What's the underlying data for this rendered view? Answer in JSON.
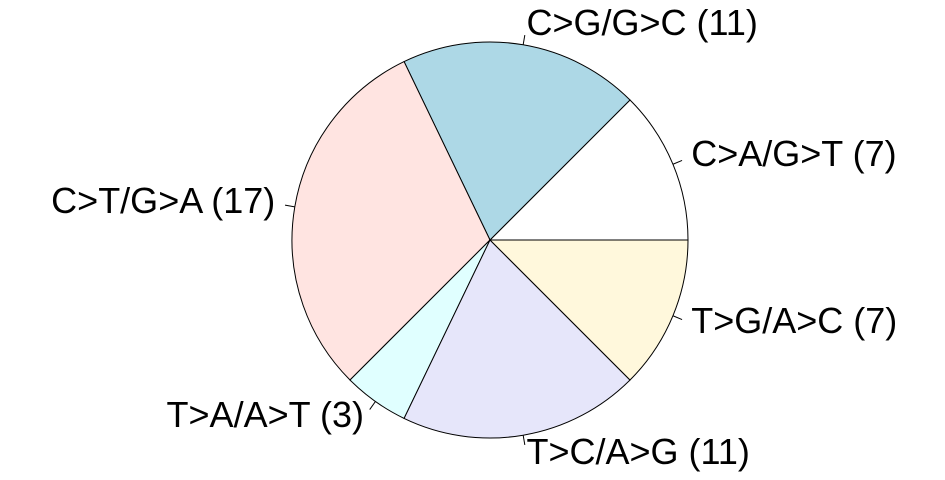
{
  "chart_data": {
    "type": "pie",
    "categories": [
      "C>A/G>T (7)",
      "C>G/G>C (11)",
      "C>T/G>A (17)",
      "T>A/A>T (3)",
      "T>C/A>G (11)",
      "T>G/A>C (7)"
    ],
    "values": [
      7,
      11,
      17,
      3,
      11,
      7
    ],
    "colors": [
      "#ffffff",
      "#add8e6",
      "#ffe4e1",
      "#e0ffff",
      "#e6e6fa",
      "#fff8dc"
    ]
  }
}
